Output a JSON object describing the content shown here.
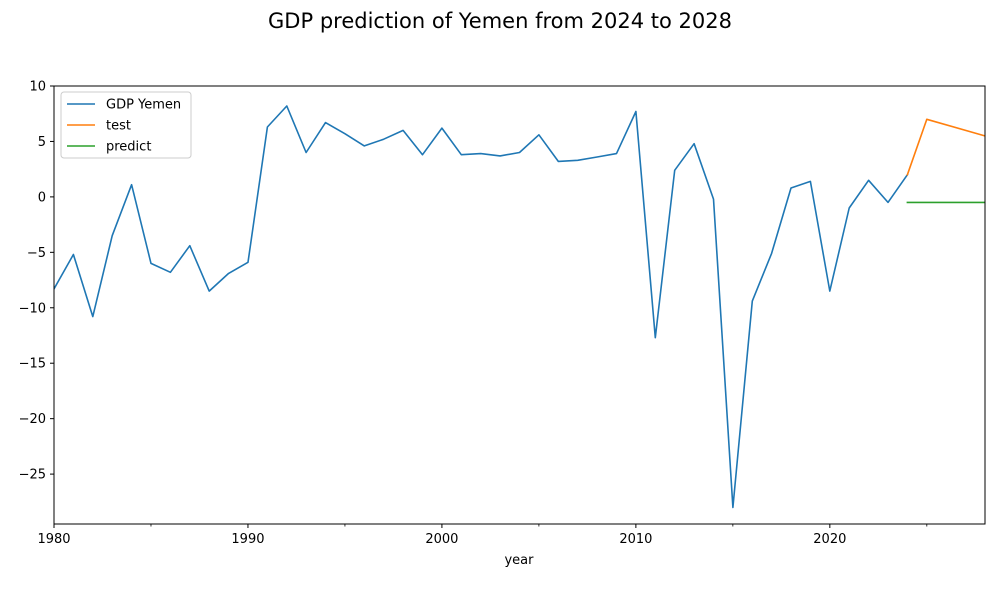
{
  "chart_data": {
    "type": "line",
    "title": "GDP prediction of Yemen from 2024 to 2028",
    "xlabel": "year",
    "ylabel": "",
    "xlim": [
      1980,
      2028
    ],
    "ylim": [
      -29.5,
      10
    ],
    "x_ticks": [
      1980,
      1990,
      2000,
      2010,
      2020
    ],
    "x_minor_ticks": [
      1985,
      1995,
      2005,
      2015,
      2025
    ],
    "y_ticks": [
      10,
      5,
      0,
      -5,
      -10,
      -15,
      -20,
      -25
    ],
    "x_tick_labels": [
      "1980",
      "1990",
      "2000",
      "2010",
      "2020"
    ],
    "y_tick_labels": [
      "10",
      "5",
      "0",
      "−5",
      "−10",
      "−15",
      "−20",
      "−25"
    ],
    "grid": false,
    "legend_position": "top-left",
    "series": [
      {
        "name": "GDP Yemen",
        "color": "#1f77b4",
        "x": [
          1980,
          1981,
          1982,
          1983,
          1984,
          1985,
          1986,
          1987,
          1988,
          1989,
          1990,
          1991,
          1992,
          1993,
          1994,
          1995,
          1996,
          1997,
          1998,
          1999,
          2000,
          2001,
          2002,
          2003,
          2004,
          2005,
          2006,
          2007,
          2008,
          2009,
          2010,
          2011,
          2012,
          2013,
          2014,
          2015,
          2016,
          2017,
          2018,
          2019,
          2020,
          2021,
          2022,
          2023,
          2024
        ],
        "y": [
          -8.3,
          -5.2,
          -10.8,
          -3.5,
          1.1,
          -6.0,
          -6.8,
          -4.4,
          -8.5,
          -6.9,
          -5.9,
          6.3,
          8.2,
          4.0,
          6.7,
          5.7,
          4.6,
          5.2,
          6.0,
          3.8,
          6.2,
          3.8,
          3.9,
          3.7,
          4.0,
          5.6,
          3.2,
          3.3,
          3.6,
          3.9,
          7.7,
          -12.7,
          2.4,
          4.8,
          -0.2,
          -28.0,
          -9.4,
          -5.1,
          0.8,
          1.4,
          -8.5,
          -1.0,
          1.5,
          -0.5,
          2.0
        ]
      },
      {
        "name": "test",
        "color": "#ff7f0e",
        "x": [
          2024,
          2025,
          2028
        ],
        "y": [
          2.0,
          7.0,
          5.5
        ]
      },
      {
        "name": "predict",
        "color": "#2ca02c",
        "x": [
          2024,
          2025,
          2026,
          2027,
          2028
        ],
        "y": [
          -0.5,
          -0.5,
          -0.5,
          -0.5,
          -0.5
        ]
      }
    ]
  }
}
